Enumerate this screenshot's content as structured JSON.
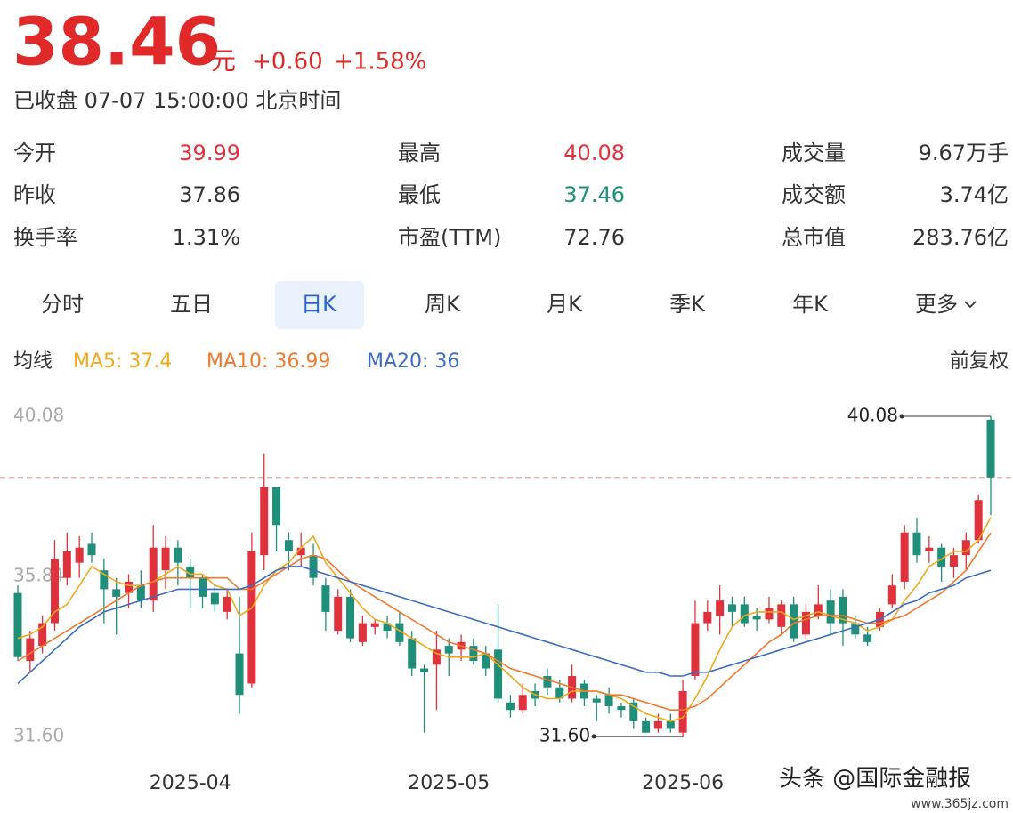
{
  "header": {
    "price": "38.46",
    "unit": "元",
    "change": "+0.60",
    "change_pct": "+1.58%",
    "status": "已收盘 07-07 15:00:00 北京时间"
  },
  "stats": {
    "rows": [
      [
        {
          "label": "今开",
          "value": "39.99",
          "color": "#e0323c"
        },
        {
          "label": "最高",
          "value": "40.08",
          "color": "#e0323c"
        },
        {
          "label": "成交量",
          "value": "9.67万手"
        }
      ],
      [
        {
          "label": "昨收",
          "value": "37.86"
        },
        {
          "label": "最低",
          "value": "37.46",
          "color": "#1f8f7a"
        },
        {
          "label": "成交额",
          "value": "3.74亿"
        }
      ],
      [
        {
          "label": "换手率",
          "value": "1.31%"
        },
        {
          "label": "市盈(TTM)",
          "value": "72.76"
        },
        {
          "label": "总市值",
          "value": "283.76亿"
        }
      ]
    ]
  },
  "tabs": {
    "items": [
      "分时",
      "五日",
      "日K",
      "周K",
      "月K",
      "季K",
      "年K",
      "更多"
    ],
    "selected": 2
  },
  "ma_legend": {
    "title": "均线",
    "adjust": "前复权"
  },
  "watermark": {
    "source": "头条 @国际金融报",
    "site": "www.365jz.com"
  },
  "chart_data": {
    "type": "candlestick",
    "categories": [
      null,
      null,
      null,
      null,
      null,
      null,
      null,
      null,
      null,
      null,
      null,
      null,
      null,
      null,
      "2025-04",
      null,
      null,
      null,
      null,
      null,
      null,
      null,
      null,
      null,
      null,
      null,
      null,
      null,
      null,
      null,
      null,
      null,
      null,
      null,
      null,
      "2025-05",
      null,
      null,
      null,
      null,
      null,
      null,
      null,
      null,
      null,
      null,
      null,
      null,
      null,
      null,
      null,
      null,
      null,
      null,
      "2025-06",
      null,
      null,
      null,
      null,
      null,
      null,
      null,
      null,
      null,
      null,
      null,
      null,
      null,
      null,
      null,
      null,
      null,
      null,
      null,
      null,
      null,
      null,
      null,
      null,
      null
    ],
    "open": [
      35.4,
      33.6,
      34.0,
      34.6,
      35.8,
      36.2,
      36.7,
      36.0,
      35.5,
      35.4,
      35.6,
      35.2,
      36.0,
      36.6,
      36.1,
      35.8,
      35.4,
      34.9,
      33.8,
      33.0,
      36.4,
      38.2,
      36.8,
      36.4,
      36.4,
      35.6,
      34.4,
      35.3,
      34.1,
      34.5,
      34.6,
      34.6,
      34.2,
      33.4,
      33.5,
      34.0,
      33.9,
      34.0,
      33.8,
      33.9,
      32.5,
      32.3,
      32.8,
      33.2,
      32.9,
      32.6,
      33.0,
      32.6,
      32.7,
      32.4,
      32.5,
      32.0,
      31.8,
      32.0,
      31.7,
      33.2,
      34.6,
      34.8,
      35.1,
      35.1,
      34.8,
      34.7,
      34.5,
      35.1,
      34.3,
      34.8,
      35.2,
      35.3,
      34.6,
      34.3,
      34.5,
      35.1,
      35.7,
      37.0,
      36.5,
      36.6,
      36.1,
      36.4,
      36.8,
      39.99
    ],
    "high": [
      35.6,
      34.4,
      34.8,
      36.8,
      37.0,
      36.9,
      37.0,
      36.3,
      35.8,
      35.9,
      36.0,
      37.2,
      36.9,
      36.8,
      36.3,
      35.9,
      35.6,
      35.5,
      35.3,
      37.0,
      39.1,
      38.2,
      37.0,
      37.0,
      36.7,
      35.8,
      35.5,
      35.5,
      34.8,
      34.7,
      34.8,
      34.9,
      34.4,
      33.5,
      34.4,
      34.2,
      34.3,
      34.2,
      34.0,
      35.1,
      32.7,
      33.0,
      33.0,
      33.4,
      33.1,
      33.5,
      33.1,
      32.7,
      32.9,
      32.5,
      32.6,
      32.1,
      32.2,
      32.2,
      33.1,
      35.2,
      35.2,
      35.6,
      35.3,
      35.3,
      35.0,
      35.3,
      35.2,
      35.3,
      35.1,
      35.6,
      35.5,
      35.5,
      34.8,
      34.5,
      35.0,
      35.9,
      37.2,
      37.4,
      36.9,
      36.7,
      36.6,
      37.0,
      38.0,
      40.08
    ],
    "low": [
      33.6,
      33.3,
      33.8,
      34.4,
      35.6,
      35.8,
      36.2,
      34.6,
      34.3,
      35.0,
      35.0,
      34.9,
      35.5,
      35.6,
      35.0,
      35.0,
      34.9,
      34.7,
      32.2,
      32.9,
      36.0,
      36.5,
      36.0,
      36.1,
      35.6,
      34.4,
      34.3,
      34.1,
      34.0,
      34.3,
      34.2,
      34.0,
      33.2,
      31.7,
      32.3,
      33.2,
      33.6,
      33.5,
      33.2,
      32.5,
      32.1,
      32.2,
      32.4,
      32.7,
      32.5,
      32.5,
      32.4,
      32.0,
      32.2,
      32.1,
      31.8,
      31.7,
      31.7,
      31.7,
      31.6,
      33.1,
      34.4,
      34.3,
      34.5,
      34.5,
      34.4,
      34.6,
      34.3,
      34.1,
      34.2,
      34.7,
      34.3,
      34.0,
      34.2,
      34.0,
      34.4,
      35.0,
      35.5,
      36.2,
      36.2,
      35.7,
      35.8,
      36.0,
      36.7,
      37.46
    ],
    "close": [
      33.7,
      34.2,
      34.6,
      36.3,
      36.5,
      36.6,
      36.4,
      35.5,
      35.3,
      35.7,
      35.2,
      36.6,
      36.6,
      36.2,
      35.8,
      35.3,
      35.1,
      35.3,
      32.7,
      36.5,
      38.2,
      37.2,
      36.5,
      36.6,
      35.8,
      34.9,
      35.3,
      34.2,
      34.6,
      34.6,
      34.4,
      34.1,
      33.4,
      33.3,
      33.9,
      33.8,
      34.1,
      33.6,
      33.4,
      32.6,
      32.3,
      32.7,
      32.6,
      32.9,
      32.6,
      33.2,
      32.6,
      32.5,
      32.4,
      32.3,
      32.0,
      31.7,
      32.0,
      31.8,
      32.8,
      34.6,
      34.9,
      35.2,
      34.9,
      34.6,
      34.7,
      35.0,
      35.1,
      34.2,
      34.9,
      35.1,
      34.6,
      34.6,
      34.3,
      34.1,
      34.9,
      35.6,
      37.0,
      36.4,
      36.6,
      36.1,
      36.4,
      36.8,
      37.86,
      38.46
    ],
    "up_color": "#e0323c",
    "down_color": "#1f8f7a",
    "series": [
      {
        "name": "MA5: 37.4",
        "color": "#f0a81c",
        "values": [
          34.2,
          34.3,
          34.5,
          34.9,
          35.1,
          35.6,
          36.1,
          35.9,
          35.7,
          35.6,
          35.6,
          35.7,
          35.9,
          36.1,
          35.9,
          35.9,
          35.6,
          35.5,
          34.8,
          35.0,
          35.6,
          36.0,
          36.2,
          36.6,
          36.9,
          36.2,
          35.8,
          35.4,
          35.0,
          34.7,
          34.6,
          34.4,
          34.2,
          34.0,
          33.8,
          33.7,
          33.7,
          33.7,
          33.8,
          33.5,
          33.2,
          32.9,
          32.7,
          32.6,
          32.6,
          32.8,
          32.8,
          32.8,
          32.7,
          32.6,
          32.4,
          32.2,
          32.1,
          32.0,
          32.1,
          32.6,
          33.2,
          33.9,
          34.5,
          34.8,
          34.9,
          34.9,
          34.9,
          34.7,
          34.8,
          34.9,
          34.8,
          34.7,
          34.6,
          34.4,
          34.5,
          34.7,
          35.2,
          35.6,
          36.1,
          36.3,
          36.5,
          36.5,
          36.8,
          37.4
        ]
      },
      {
        "name": "MA10: 36.99",
        "color": "#f07930",
        "values": [
          33.6,
          33.8,
          34.0,
          34.2,
          34.4,
          34.6,
          34.8,
          35.0,
          35.2,
          35.4,
          35.6,
          35.7,
          35.8,
          35.8,
          35.8,
          35.8,
          35.8,
          35.8,
          35.5,
          35.5,
          35.7,
          35.9,
          36.1,
          36.3,
          36.4,
          36.3,
          36.0,
          35.7,
          35.5,
          35.3,
          35.1,
          34.9,
          34.7,
          34.5,
          34.3,
          34.1,
          34.0,
          33.9,
          33.8,
          33.6,
          33.4,
          33.3,
          33.2,
          33.1,
          33.0,
          32.9,
          32.8,
          32.8,
          32.7,
          32.7,
          32.6,
          32.5,
          32.4,
          32.3,
          32.3,
          32.4,
          32.6,
          32.9,
          33.2,
          33.5,
          33.8,
          34.1,
          34.3,
          34.6,
          34.7,
          34.8,
          34.8,
          34.8,
          34.7,
          34.6,
          34.6,
          34.7,
          34.8,
          35.0,
          35.2,
          35.4,
          35.7,
          36.0,
          36.5,
          36.99
        ]
      },
      {
        "name": "MA20: 36",
        "color": "#3d6cc4",
        "values": [
          33.0,
          33.3,
          33.6,
          33.9,
          34.2,
          34.5,
          34.7,
          34.9,
          35.0,
          35.1,
          35.2,
          35.3,
          35.4,
          35.5,
          35.5,
          35.5,
          35.5,
          35.5,
          35.5,
          35.6,
          35.8,
          36.0,
          36.1,
          36.1,
          36.0,
          35.9,
          35.8,
          35.7,
          35.6,
          35.5,
          35.4,
          35.3,
          35.2,
          35.1,
          35.0,
          34.9,
          34.8,
          34.7,
          34.6,
          34.5,
          34.4,
          34.3,
          34.2,
          34.1,
          34.0,
          33.9,
          33.8,
          33.7,
          33.6,
          33.5,
          33.4,
          33.3,
          33.3,
          33.2,
          33.2,
          33.3,
          33.3,
          33.4,
          33.5,
          33.6,
          33.7,
          33.8,
          33.9,
          34.0,
          34.1,
          34.2,
          34.3,
          34.4,
          34.5,
          34.6,
          34.7,
          34.9,
          35.1,
          35.2,
          35.4,
          35.5,
          35.6,
          35.8,
          35.9,
          36
        ]
      }
    ],
    "price_line": 38.46,
    "ylim": [
      31.08,
      40.74
    ],
    "yticks": [
      40.08,
      35.84,
      {
        "value": 31.6,
        "label": "31.60"
      }
    ],
    "annotations": [
      {
        "text": "40.08",
        "value": 40.08
      },
      {
        "text": "31.60",
        "value": 31.6
      }
    ]
  }
}
